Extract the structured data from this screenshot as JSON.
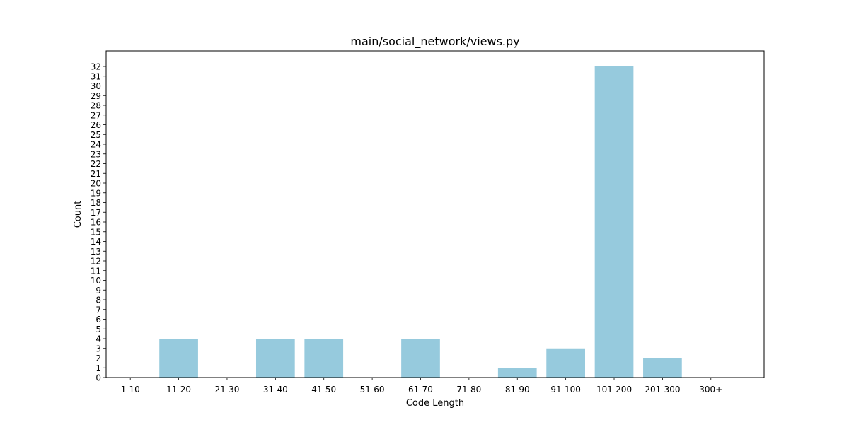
{
  "chart_data": {
    "type": "bar",
    "title": "main/social_network/views.py",
    "xlabel": "Code Length",
    "ylabel": "Count",
    "categories": [
      "1-10",
      "11-20",
      "21-30",
      "31-40",
      "41-50",
      "51-60",
      "61-70",
      "71-80",
      "81-90",
      "91-100",
      "101-200",
      "201-300",
      "300+"
    ],
    "values": [
      0,
      4,
      0,
      4,
      4,
      0,
      4,
      0,
      1,
      3,
      32,
      2,
      0
    ],
    "ylim": [
      0,
      33.6
    ],
    "yticks": [
      0,
      1,
      2,
      3,
      4,
      5,
      6,
      7,
      8,
      9,
      10,
      11,
      12,
      13,
      14,
      15,
      16,
      17,
      18,
      19,
      20,
      21,
      22,
      23,
      24,
      25,
      26,
      27,
      28,
      29,
      30,
      31,
      32
    ],
    "bar_color": "#96cadd",
    "grid": false,
    "legend": "none"
  }
}
